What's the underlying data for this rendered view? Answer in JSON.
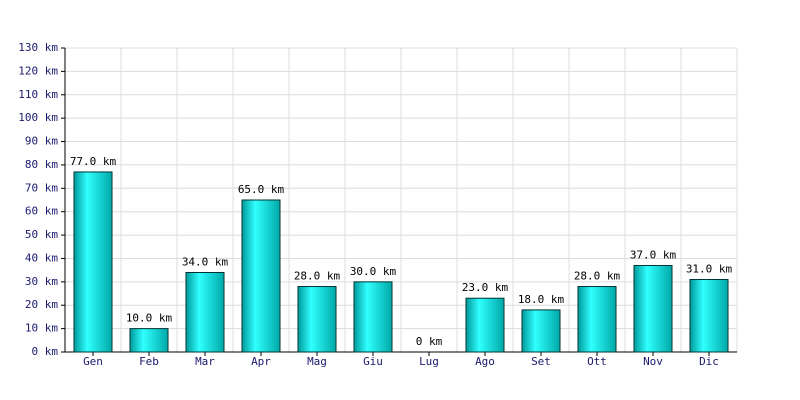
{
  "chart_data": {
    "type": "bar",
    "categories": [
      "Gen",
      "Feb",
      "Mar",
      "Apr",
      "Mag",
      "Giu",
      "Lug",
      "Ago",
      "Set",
      "Ott",
      "Nov",
      "Dic"
    ],
    "values": [
      77,
      10,
      34,
      65,
      28,
      30,
      0,
      23,
      18,
      28,
      37,
      31
    ],
    "value_labels": [
      "77.0 km",
      "10.0 km",
      "34.0 km",
      "65.0 km",
      "28.0 km",
      "30.0 km",
      "0 km",
      "23.0 km",
      "18.0 km",
      "28.0 km",
      "37.0 km",
      "31.0 km"
    ],
    "color": "#00d0d0",
    "ylim": [
      0,
      130
    ],
    "yticks": [
      {
        "value": 0,
        "label": "0 km"
      },
      {
        "value": 10,
        "label": "10 km"
      },
      {
        "value": 20,
        "label": "20 km"
      },
      {
        "value": 30,
        "label": "30 km"
      },
      {
        "value": 40,
        "label": "40 km"
      },
      {
        "value": 50,
        "label": "50 km"
      },
      {
        "value": 60,
        "label": "60 km"
      },
      {
        "value": 70,
        "label": "70 km"
      },
      {
        "value": 80,
        "label": "80 km"
      },
      {
        "value": 90,
        "label": "90 km"
      },
      {
        "value": 100,
        "label": "100 km"
      },
      {
        "value": 110,
        "label": "110 km"
      },
      {
        "value": 120,
        "label": "120 km"
      },
      {
        "value": 130,
        "label": "130 km"
      }
    ],
    "grid": true
  }
}
